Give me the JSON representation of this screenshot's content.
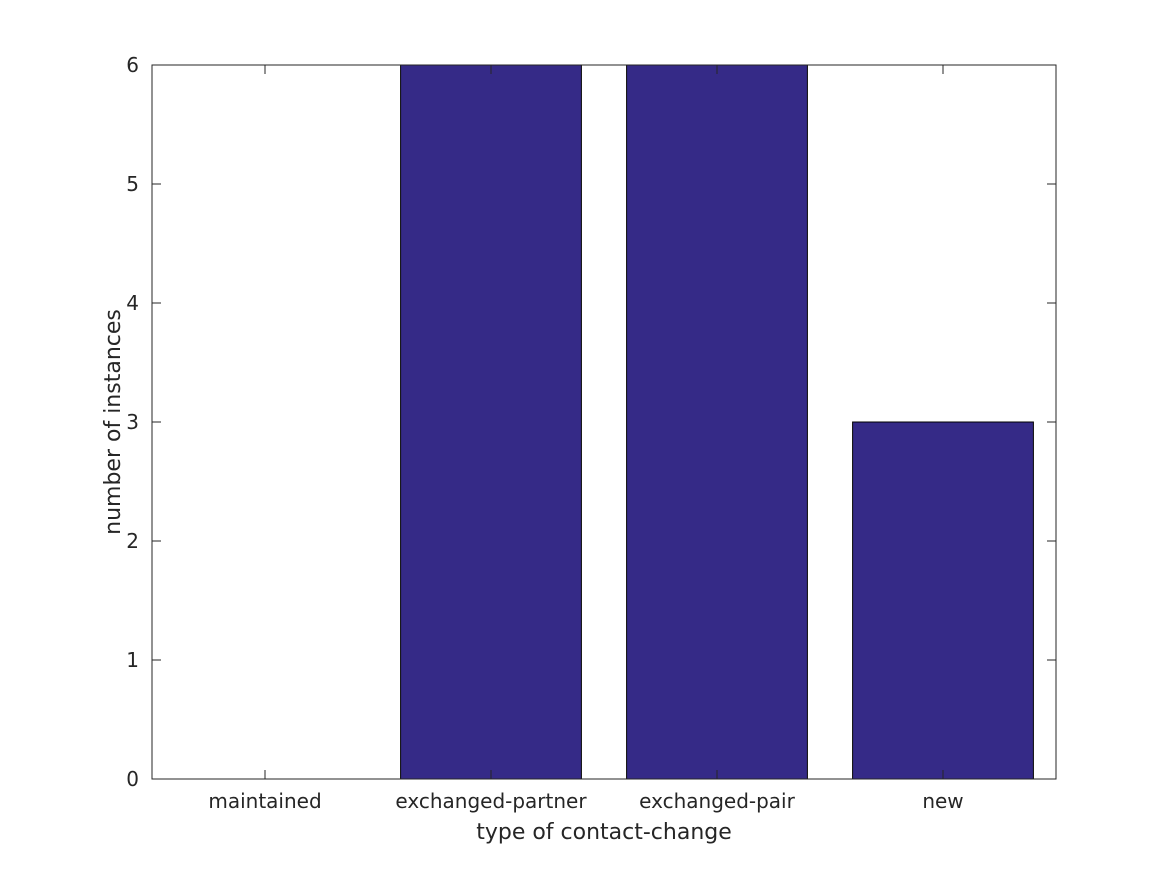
{
  "chart_data": {
    "type": "bar",
    "categories": [
      "maintained",
      "exchanged-partner",
      "exchanged-pair",
      "new"
    ],
    "values": [
      0,
      6,
      6,
      3
    ],
    "xlabel": "type of contact-change",
    "ylabel": "number of instances",
    "ylim": [
      0,
      6
    ],
    "yticks": [
      "0",
      "1",
      "2",
      "3",
      "4",
      "5",
      "6"
    ],
    "grid": false,
    "legend": "none",
    "colors": {
      "bar_fill": "#352a87",
      "bar_edge": "#000000",
      "axis": "#262626"
    }
  }
}
